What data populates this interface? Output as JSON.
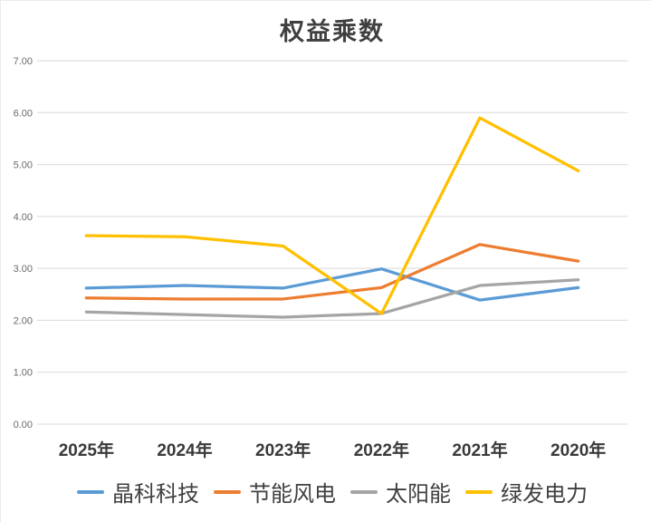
{
  "chart_data": {
    "type": "line",
    "title": "权益乘数",
    "categories": [
      "2025年",
      "2024年",
      "2023年",
      "2022年",
      "2021年",
      "2020年"
    ],
    "series": [
      {
        "name": "晶科科技",
        "color": "#5B9BD5",
        "values": [
          2.62,
          2.67,
          2.62,
          2.99,
          2.39,
          2.63
        ]
      },
      {
        "name": "节能风电",
        "color": "#ED7D31",
        "values": [
          2.43,
          2.41,
          2.41,
          2.63,
          3.46,
          3.14
        ]
      },
      {
        "name": "太阳能",
        "color": "#A5A5A5",
        "values": [
          2.16,
          2.11,
          2.06,
          2.13,
          2.67,
          2.78
        ]
      },
      {
        "name": "绿发电力",
        "color": "#FFC000",
        "values": [
          3.63,
          3.61,
          3.43,
          2.13,
          5.9,
          4.88
        ]
      }
    ],
    "ylim": [
      0,
      7
    ],
    "yticks": [
      "7.00",
      "6.00",
      "5.00",
      "4.00",
      "3.00",
      "2.00",
      "1.00",
      "0.00"
    ],
    "grid": true,
    "gridline_color": "#D9D9D9",
    "legend_position": "bottom",
    "xlabel": "",
    "ylabel": ""
  }
}
